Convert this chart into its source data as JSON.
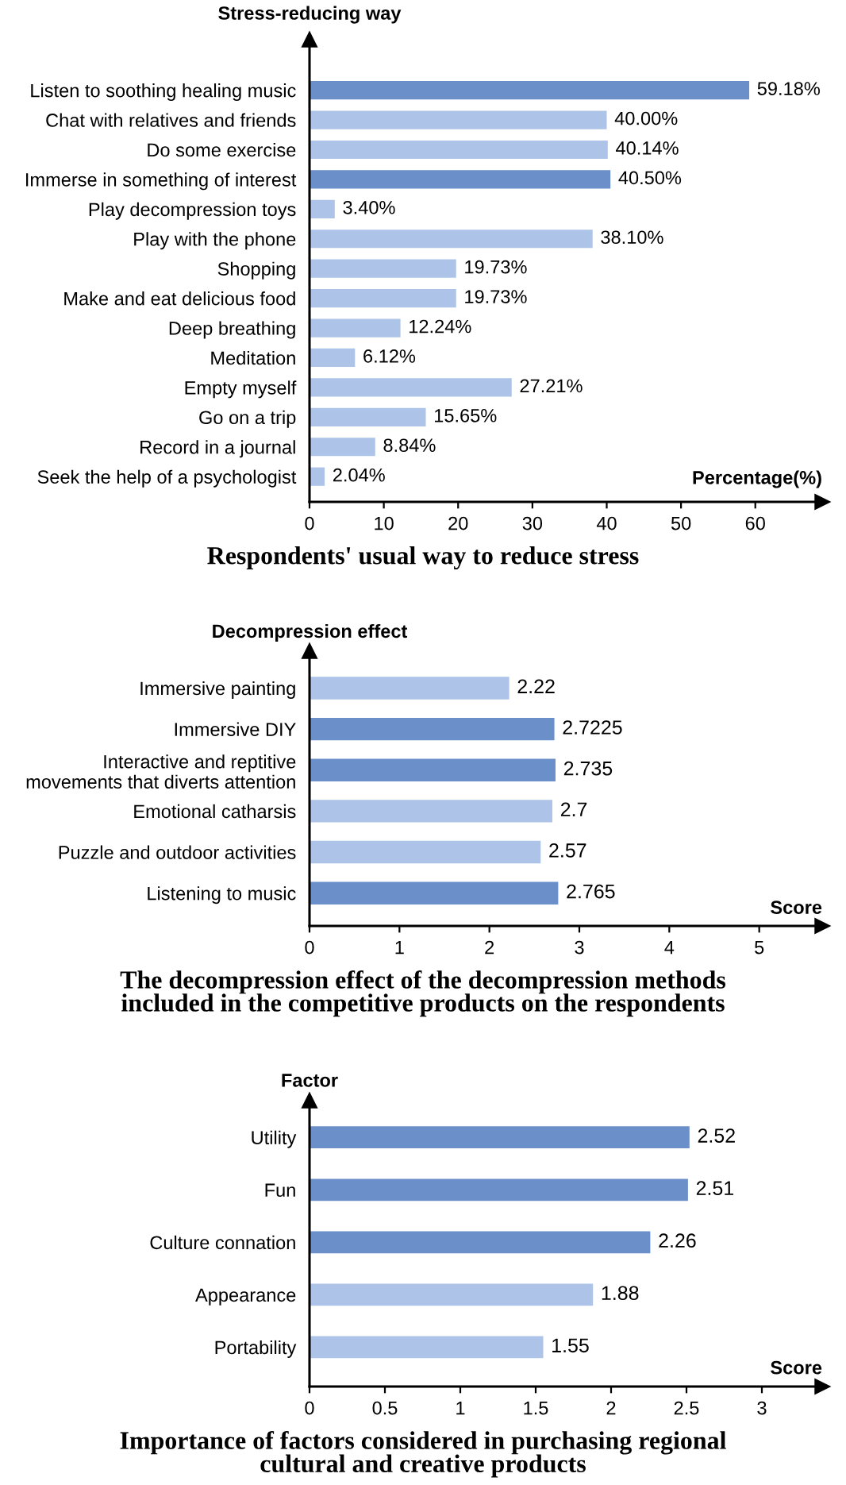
{
  "chart_data": [
    {
      "type": "bar",
      "orientation": "horizontal",
      "title": "Respondents' usual way to reduce stress",
      "ylabel": "Stress-reducing way",
      "xlabel": "Percentage(%)",
      "categories": [
        "Listen to soothing healing music",
        "Chat with relatives and friends",
        "Do some exercise",
        "Immerse in something of interest",
        "Play decompression toys",
        "Play with the phone",
        "Shopping",
        "Make and eat delicious food",
        "Deep breathing",
        "Meditation",
        "Empty myself",
        "Go on a trip",
        "Record in a journal",
        "Seek the help of a psychologist"
      ],
      "values": [
        59.18,
        40.0,
        40.14,
        40.5,
        3.4,
        38.1,
        19.73,
        19.73,
        12.24,
        6.12,
        27.21,
        15.65,
        8.84,
        2.04
      ],
      "value_labels": [
        "59.18%",
        "40.00%",
        "40.14%",
        "40.50%",
        "3.40%",
        "38.10%",
        "19.73%",
        "19.73%",
        "12.24%",
        "6.12%",
        "27.21%",
        "15.65%",
        "8.84%",
        "2.04%"
      ],
      "colors": [
        "#6a8fc9",
        "#adc4e8",
        "#adc4e8",
        "#6a8fc9",
        "#adc4e8",
        "#adc4e8",
        "#adc4e8",
        "#adc4e8",
        "#adc4e8",
        "#adc4e8",
        "#adc4e8",
        "#adc4e8",
        "#adc4e8",
        "#adc4e8"
      ],
      "xlim": [
        0,
        69
      ],
      "xticks": [
        0,
        10,
        20,
        30,
        40,
        50,
        60
      ],
      "grid": false
    },
    {
      "type": "bar",
      "orientation": "horizontal",
      "title": "The decompression effect of the decompression methods\nincluded in the competitive products on the respondents",
      "ylabel": "Decompression effect",
      "xlabel": "Score",
      "categories": [
        "Immersive painting",
        "Immersive DIY",
        "Interactive and reptitive\nmovements that diverts attention",
        "Emotional catharsis",
        "Puzzle and outdoor activities",
        "Listening to music"
      ],
      "values": [
        2.22,
        2.7225,
        2.735,
        2.7,
        2.57,
        2.765
      ],
      "value_labels": [
        "2.22",
        "2.7225",
        "2.735",
        "2.7",
        "2.57",
        "2.765"
      ],
      "colors": [
        "#adc4e8",
        "#6a8fc9",
        "#6a8fc9",
        "#adc4e8",
        "#adc4e8",
        "#6a8fc9"
      ],
      "xlim": [
        0,
        5.7
      ],
      "xticks": [
        0,
        1,
        2,
        3,
        4,
        5
      ],
      "grid": false
    },
    {
      "type": "bar",
      "orientation": "horizontal",
      "title": "Importance of factors considered in purchasing regional\ncultural and creative products",
      "ylabel": "Factor",
      "xlabel": "Score",
      "categories": [
        "Utility",
        "Fun",
        "Culture connation",
        "Appearance",
        "Portability"
      ],
      "values": [
        2.52,
        2.51,
        2.26,
        1.88,
        1.55
      ],
      "value_labels": [
        "2.52",
        "2.51",
        "2.26",
        "1.88",
        "1.55"
      ],
      "colors": [
        "#6a8fc9",
        "#6a8fc9",
        "#6a8fc9",
        "#adc4e8",
        "#adc4e8"
      ],
      "xlim": [
        0,
        3.4
      ],
      "xticks": [
        0,
        0.5,
        1,
        1.5,
        2,
        2.5,
        3
      ],
      "grid": false
    }
  ]
}
